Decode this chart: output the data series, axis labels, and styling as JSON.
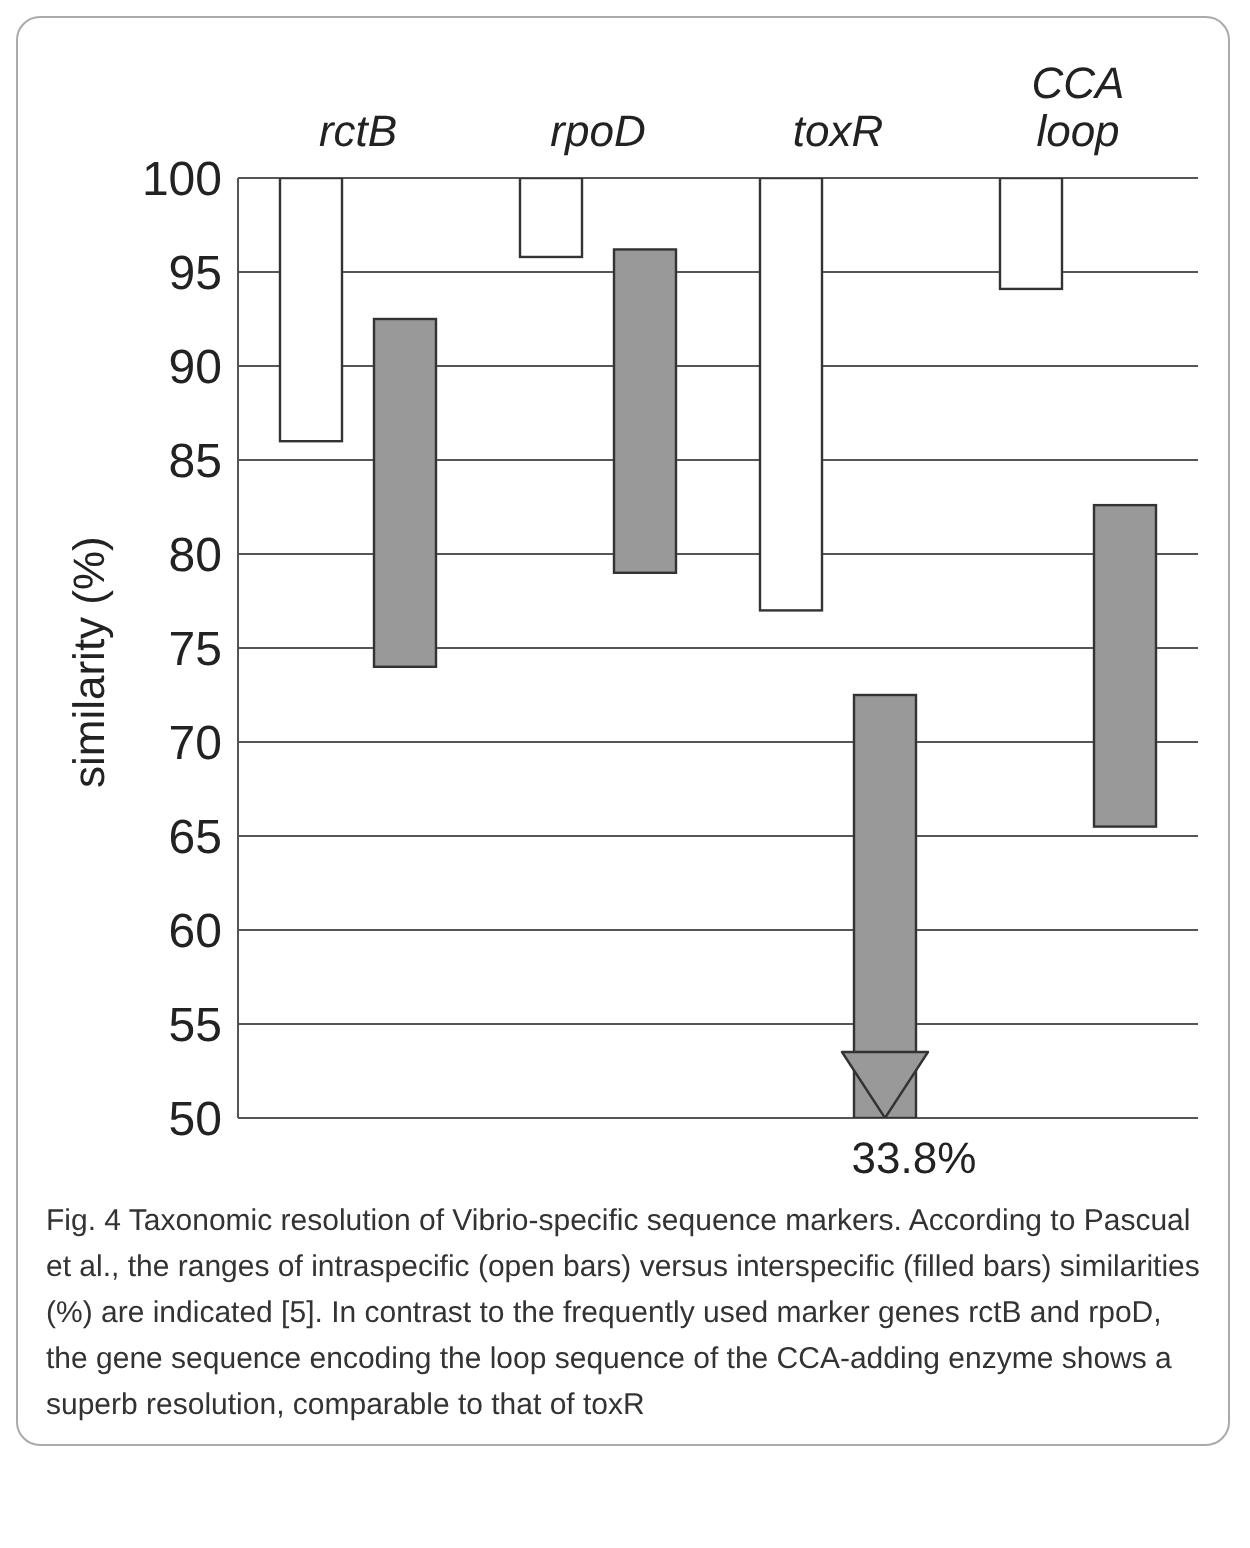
{
  "chart_data": {
    "type": "bar",
    "ylabel": "similarity (%)",
    "categories": [
      "rctB",
      "rpoD",
      "toxR",
      "CCA loop"
    ],
    "series": [
      {
        "color": "#ffffff",
        "base": [
          86,
          95.8,
          77,
          94.1
        ],
        "values": [
          14,
          4.2,
          23,
          5.9
        ]
      },
      {
        "color": "#999999",
        "base": [
          74,
          79,
          50,
          65.5
        ],
        "values": [
          18.5,
          17.2,
          22.5,
          17.1
        ]
      }
    ],
    "ylim": [
      50,
      100
    ],
    "yticks": [
      50,
      55,
      60,
      65,
      70,
      75,
      80,
      85,
      90,
      95,
      100
    ],
    "grid": "y",
    "annotations": [
      "33.8%",
      "Fig. 4 Taxonomic resolution of Vibrio-specific sequence markers. According to Pascual et al., the ranges of intraspecific (open bars) versus interspecific (filled bars) similarities (%) are indicated [5]. In contrast to the frequently used marker genes rctB and rpoD, the gene sequence encoding the loop sequence of the CCA-adding enzyme shows a superb resolution, comparable to that of toxR"
    ]
  }
}
